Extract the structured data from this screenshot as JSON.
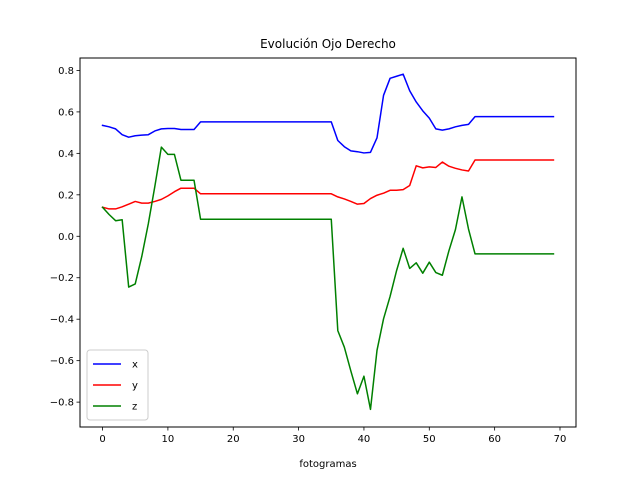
{
  "chart_data": {
    "type": "line",
    "title": "Evolución Ojo Derecho",
    "xlabel": "fotogramas",
    "ylabel": "",
    "xlim": [
      -3.45,
      72.45
    ],
    "ylim": [
      -0.92,
      0.86
    ],
    "xticks": [
      0,
      10,
      20,
      30,
      40,
      50,
      60,
      70
    ],
    "yticks": [
      -0.8,
      -0.6,
      -0.4,
      -0.2,
      0.0,
      0.2,
      0.4,
      0.6,
      0.8
    ],
    "ytick_labels": [
      "−0.8",
      "−0.6",
      "−0.4",
      "−0.2",
      "0.0",
      "0.2",
      "0.4",
      "0.6",
      "0.8"
    ],
    "legend_position": "lower-left",
    "grid": false,
    "series": [
      {
        "name": "x",
        "color": "#0000ff",
        "points": [
          [
            0,
            0.535
          ],
          [
            1,
            0.528
          ],
          [
            2,
            0.518
          ],
          [
            3,
            0.49
          ],
          [
            4,
            0.478
          ],
          [
            5,
            0.485
          ],
          [
            6,
            0.488
          ],
          [
            7,
            0.49
          ],
          [
            8,
            0.508
          ],
          [
            9,
            0.518
          ],
          [
            10,
            0.52
          ],
          [
            11,
            0.52
          ],
          [
            12,
            0.515
          ],
          [
            13,
            0.515
          ],
          [
            14,
            0.515
          ],
          [
            15,
            0.552
          ],
          [
            35,
            0.552
          ],
          [
            36,
            0.462
          ],
          [
            37,
            0.432
          ],
          [
            38,
            0.412
          ],
          [
            39,
            0.408
          ],
          [
            40,
            0.402
          ],
          [
            41,
            0.405
          ],
          [
            42,
            0.475
          ],
          [
            43,
            0.68
          ],
          [
            44,
            0.762
          ],
          [
            45,
            0.772
          ],
          [
            46,
            0.782
          ],
          [
            47,
            0.702
          ],
          [
            48,
            0.648
          ],
          [
            49,
            0.605
          ],
          [
            50,
            0.57
          ],
          [
            51,
            0.518
          ],
          [
            52,
            0.512
          ],
          [
            53,
            0.518
          ],
          [
            54,
            0.528
          ],
          [
            55,
            0.535
          ],
          [
            56,
            0.54
          ],
          [
            57,
            0.577
          ],
          [
            69,
            0.577
          ]
        ]
      },
      {
        "name": "y",
        "color": "#ff0000",
        "points": [
          [
            0,
            0.14
          ],
          [
            1,
            0.132
          ],
          [
            2,
            0.132
          ],
          [
            3,
            0.142
          ],
          [
            4,
            0.155
          ],
          [
            5,
            0.168
          ],
          [
            6,
            0.16
          ],
          [
            7,
            0.16
          ],
          [
            8,
            0.168
          ],
          [
            9,
            0.178
          ],
          [
            10,
            0.195
          ],
          [
            11,
            0.215
          ],
          [
            12,
            0.232
          ],
          [
            13,
            0.232
          ],
          [
            14,
            0.232
          ],
          [
            15,
            0.205
          ],
          [
            35,
            0.205
          ],
          [
            36,
            0.19
          ],
          [
            37,
            0.18
          ],
          [
            38,
            0.168
          ],
          [
            39,
            0.155
          ],
          [
            40,
            0.158
          ],
          [
            41,
            0.182
          ],
          [
            42,
            0.198
          ],
          [
            43,
            0.208
          ],
          [
            44,
            0.222
          ],
          [
            45,
            0.222
          ],
          [
            46,
            0.225
          ],
          [
            47,
            0.245
          ],
          [
            48,
            0.34
          ],
          [
            49,
            0.33
          ],
          [
            50,
            0.335
          ],
          [
            51,
            0.332
          ],
          [
            52,
            0.358
          ],
          [
            53,
            0.338
          ],
          [
            54,
            0.328
          ],
          [
            55,
            0.32
          ],
          [
            56,
            0.315
          ],
          [
            57,
            0.368
          ],
          [
            69,
            0.368
          ]
        ]
      },
      {
        "name": "z",
        "color": "#008000",
        "points": [
          [
            0,
            0.14
          ],
          [
            1,
            0.105
          ],
          [
            2,
            0.075
          ],
          [
            3,
            0.08
          ],
          [
            4,
            -0.245
          ],
          [
            5,
            -0.23
          ],
          [
            6,
            -0.098
          ],
          [
            7,
            0.06
          ],
          [
            8,
            0.24
          ],
          [
            9,
            0.43
          ],
          [
            10,
            0.395
          ],
          [
            11,
            0.395
          ],
          [
            12,
            0.27
          ],
          [
            13,
            0.27
          ],
          [
            14,
            0.27
          ],
          [
            15,
            0.082
          ],
          [
            35,
            0.082
          ],
          [
            36,
            -0.455
          ],
          [
            37,
            -0.535
          ],
          [
            38,
            -0.65
          ],
          [
            39,
            -0.76
          ],
          [
            40,
            -0.675
          ],
          [
            41,
            -0.835
          ],
          [
            42,
            -0.55
          ],
          [
            43,
            -0.398
          ],
          [
            44,
            -0.29
          ],
          [
            45,
            -0.165
          ],
          [
            46,
            -0.058
          ],
          [
            47,
            -0.155
          ],
          [
            48,
            -0.128
          ],
          [
            49,
            -0.178
          ],
          [
            50,
            -0.125
          ],
          [
            51,
            -0.175
          ],
          [
            52,
            -0.188
          ],
          [
            53,
            -0.07
          ],
          [
            54,
            0.032
          ],
          [
            55,
            0.19
          ],
          [
            56,
            0.035
          ],
          [
            57,
            -0.085
          ],
          [
            69,
            -0.085
          ]
        ]
      }
    ]
  }
}
